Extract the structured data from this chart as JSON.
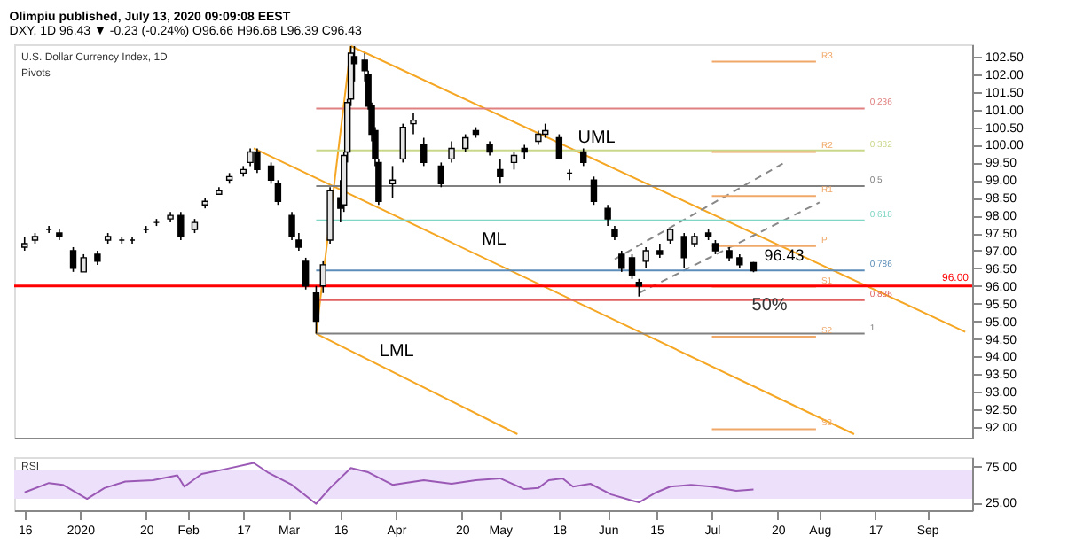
{
  "chart_data": [
    {
      "type": "candlestick",
      "title": "Olimpiu published, July 13, 2020 09:09:08 EEST",
      "subtitle": "DXY, 1D 96.43 ▼ -0.23 (-0.24%) O96.66 H96.68 L96.39 C96.43",
      "x": [
        "2019-12-16",
        "2019-12-19",
        "2019-12-23",
        "2019-12-26",
        "2019-12-30",
        "2020-01-02",
        "2020-01-06",
        "2020-01-09",
        "2020-01-13",
        "2020-01-16",
        "2020-01-20",
        "2020-01-23",
        "2020-01-27",
        "2020-01-30",
        "2020-02-03",
        "2020-02-06",
        "2020-02-10",
        "2020-02-13",
        "2020-02-17",
        "2020-02-19",
        "2020-02-21",
        "2020-02-25",
        "2020-02-27",
        "2020-03-02",
        "2020-03-04",
        "2020-03-06",
        "2020-03-09",
        "2020-03-11",
        "2020-03-13",
        "2020-03-16",
        "2020-03-17",
        "2020-03-18",
        "2020-03-19",
        "2020-03-20",
        "2020-03-23",
        "2020-03-24",
        "2020-03-25",
        "2020-03-26",
        "2020-03-27",
        "2020-03-31",
        "2020-04-03",
        "2020-04-06",
        "2020-04-09",
        "2020-04-14",
        "2020-04-17",
        "2020-04-21",
        "2020-04-24",
        "2020-04-28",
        "2020-05-01",
        "2020-05-05",
        "2020-05-08",
        "2020-05-12",
        "2020-05-14",
        "2020-05-18",
        "2020-05-21",
        "2020-05-25",
        "2020-05-28",
        "2020-06-01",
        "2020-06-03",
        "2020-06-05",
        "2020-06-08",
        "2020-06-10",
        "2020-06-12",
        "2020-06-16",
        "2020-06-19",
        "2020-06-23",
        "2020-06-26",
        "2020-06-30",
        "2020-07-02",
        "2020-07-06",
        "2020-07-09",
        "2020-07-13"
      ],
      "ohlc": [
        [
          97.1,
          97.4,
          97.0,
          97.2
        ],
        [
          97.3,
          97.5,
          97.2,
          97.4
        ],
        [
          97.6,
          97.7,
          97.5,
          97.6
        ],
        [
          97.5,
          97.6,
          97.3,
          97.4
        ],
        [
          97.0,
          97.1,
          96.4,
          96.5
        ],
        [
          96.4,
          96.9,
          96.4,
          96.8
        ],
        [
          96.9,
          97.0,
          96.6,
          96.7
        ],
        [
          97.3,
          97.5,
          97.2,
          97.4
        ],
        [
          97.3,
          97.4,
          97.2,
          97.3
        ],
        [
          97.3,
          97.4,
          97.2,
          97.3
        ],
        [
          97.6,
          97.7,
          97.5,
          97.6
        ],
        [
          97.8,
          97.9,
          97.7,
          97.8
        ],
        [
          97.9,
          98.1,
          97.8,
          98.0
        ],
        [
          98.0,
          98.1,
          97.3,
          97.4
        ],
        [
          97.6,
          97.9,
          97.5,
          97.8
        ],
        [
          98.3,
          98.5,
          98.2,
          98.4
        ],
        [
          98.6,
          98.8,
          98.6,
          98.7
        ],
        [
          99.0,
          99.2,
          98.9,
          99.1
        ],
        [
          99.2,
          99.4,
          99.1,
          99.3
        ],
        [
          99.5,
          99.9,
          99.4,
          99.8
        ],
        [
          99.8,
          99.9,
          99.2,
          99.3
        ],
        [
          99.4,
          99.5,
          98.9,
          99.0
        ],
        [
          98.9,
          99.0,
          98.3,
          98.4
        ],
        [
          98.0,
          98.1,
          97.3,
          97.4
        ],
        [
          97.3,
          97.5,
          97.0,
          97.1
        ],
        [
          96.7,
          96.8,
          95.9,
          96.0
        ],
        [
          95.8,
          96.0,
          94.65,
          95.0
        ],
        [
          96.0,
          96.7,
          95.8,
          96.6
        ],
        [
          97.3,
          98.8,
          97.2,
          98.7
        ],
        [
          98.5,
          99.0,
          97.8,
          98.2
        ],
        [
          98.3,
          99.8,
          98.1,
          99.7
        ],
        [
          99.8,
          101.3,
          99.5,
          101.2
        ],
        [
          101.3,
          102.8,
          101.1,
          102.6
        ],
        [
          102.5,
          102.8,
          101.8,
          102.3
        ],
        [
          102.4,
          102.6,
          101.8,
          102.1
        ],
        [
          102.0,
          102.1,
          101.0,
          101.1
        ],
        [
          101.1,
          101.2,
          100.1,
          100.3
        ],
        [
          100.4,
          100.5,
          99.4,
          99.6
        ],
        [
          99.5,
          99.6,
          98.3,
          98.4
        ],
        [
          98.9,
          99.4,
          98.5,
          99.0
        ],
        [
          99.6,
          100.6,
          99.5,
          100.5
        ],
        [
          100.6,
          100.9,
          100.3,
          100.7
        ],
        [
          100.0,
          100.2,
          99.4,
          99.5
        ],
        [
          99.4,
          99.5,
          98.8,
          98.9
        ],
        [
          99.6,
          100.1,
          99.5,
          99.9
        ],
        [
          99.9,
          100.3,
          99.8,
          100.2
        ],
        [
          100.4,
          100.5,
          100.2,
          100.3
        ],
        [
          100.0,
          100.1,
          99.7,
          99.8
        ],
        [
          99.3,
          99.6,
          98.9,
          99.1
        ],
        [
          99.5,
          99.8,
          99.3,
          99.7
        ],
        [
          99.9,
          100.0,
          99.6,
          99.8
        ],
        [
          100.1,
          100.4,
          100.0,
          100.3
        ],
        [
          100.3,
          100.6,
          100.2,
          100.4
        ],
        [
          100.2,
          100.3,
          99.6,
          99.6
        ],
        [
          99.2,
          99.3,
          99.0,
          99.2
        ],
        [
          99.8,
          99.9,
          99.4,
          99.5
        ],
        [
          99.0,
          99.1,
          98.3,
          98.4
        ],
        [
          98.2,
          98.3,
          97.7,
          97.9
        ],
        [
          97.6,
          97.7,
          97.3,
          97.4
        ],
        [
          96.9,
          97.0,
          96.4,
          96.5
        ],
        [
          96.8,
          96.9,
          96.2,
          96.3
        ],
        [
          96.1,
          96.2,
          95.7,
          96.0
        ],
        [
          96.7,
          97.1,
          96.5,
          97.0
        ],
        [
          97.0,
          97.2,
          96.8,
          96.9
        ],
        [
          97.3,
          97.6,
          97.2,
          97.6
        ],
        [
          97.4,
          97.5,
          96.5,
          96.8
        ],
        [
          97.2,
          97.5,
          97.1,
          97.4
        ],
        [
          97.5,
          97.6,
          97.3,
          97.4
        ],
        [
          97.2,
          97.3,
          96.9,
          97.0
        ],
        [
          97.0,
          97.1,
          96.7,
          96.8
        ],
        [
          96.8,
          96.9,
          96.5,
          96.6
        ],
        [
          96.66,
          96.68,
          96.39,
          96.43
        ]
      ],
      "xlim": [
        "2019-12-13",
        "2020-09-14"
      ],
      "ylim": [
        91.7,
        102.85
      ],
      "yticks": [
        {
          "value": 92,
          "label": "92.00"
        },
        {
          "value": 92.5,
          "label": "92.50"
        },
        {
          "value": 93,
          "label": "93.00"
        },
        {
          "value": 93.5,
          "label": "93.50"
        },
        {
          "value": 94,
          "label": "94.00"
        },
        {
          "value": 94.5,
          "label": "94.50"
        },
        {
          "value": 95,
          "label": "95.00"
        },
        {
          "value": 95.5,
          "label": "95.50"
        },
        {
          "value": 96,
          "label": "96.00"
        },
        {
          "value": 96.5,
          "label": "96.50"
        },
        {
          "value": 97,
          "label": "97.00"
        },
        {
          "value": 97.5,
          "label": "97.50"
        },
        {
          "value": 98,
          "label": "98.00"
        },
        {
          "value": 98.5,
          "label": "98.50"
        },
        {
          "value": 99,
          "label": "99.00"
        },
        {
          "value": 99.5,
          "label": "99.50"
        },
        {
          "value": 100,
          "label": "100.00"
        },
        {
          "value": 100.5,
          "label": "100.50"
        },
        {
          "value": 101,
          "label": "101.00"
        },
        {
          "value": 101.5,
          "label": "101.50"
        },
        {
          "value": 102,
          "label": "102.00"
        },
        {
          "value": 102.5,
          "label": "102.50"
        }
      ],
      "tick_labels": "y",
      "series": [
        {
          "name": "UML",
          "type": "line",
          "color": "#f5a623",
          "x": [
            "2020-03-19",
            "2020-09-12"
          ],
          "values": [
            102.8,
            94.7
          ]
        },
        {
          "name": "ML",
          "type": "line",
          "color": "#f5a623",
          "x": [
            "2020-02-20",
            "2020-08-11"
          ],
          "values": [
            99.9,
            91.8
          ]
        },
        {
          "name": "LML",
          "type": "line",
          "color": "#f5a623",
          "x": [
            "2020-03-09",
            "2020-05-06"
          ],
          "values": [
            94.65,
            91.8
          ]
        },
        {
          "type": "line",
          "color": "#f5a623",
          "x": [
            "2020-03-09",
            "2020-03-19"
          ],
          "values": [
            94.65,
            102.8
          ]
        },
        {
          "type": "line",
          "color": "#888888",
          "line_style": "dashed",
          "x": [
            "2020-06-03",
            "2020-07-22"
          ],
          "values": [
            96.76,
            99.5
          ]
        },
        {
          "type": "line",
          "color": "#888888",
          "line_style": "dashed",
          "x": [
            "2020-06-10",
            "2020-08-01"
          ],
          "values": [
            95.8,
            98.37
          ]
        },
        {
          "name": "0.236",
          "type": "line",
          "color": "#e08080",
          "x": [
            "2020-03-09",
            "2020-08-14"
          ],
          "values": [
            101.03,
            101.03
          ]
        },
        {
          "name": "0.382",
          "type": "line",
          "color": "#c8d88a",
          "x": [
            "2020-03-09",
            "2020-08-14"
          ],
          "values": [
            99.84,
            99.84
          ]
        },
        {
          "name": "0.5",
          "type": "line",
          "color": "#808080",
          "x": [
            "2020-03-09",
            "2020-08-14"
          ],
          "values": [
            98.83,
            98.83
          ]
        },
        {
          "name": "0.618",
          "type": "line",
          "color": "#7fd6c4",
          "x": [
            "2020-03-09",
            "2020-08-14"
          ],
          "values": [
            97.86,
            97.86
          ]
        },
        {
          "name": "0.786",
          "type": "line",
          "color": "#5b8db8",
          "x": [
            "2020-03-09",
            "2020-08-14"
          ],
          "values": [
            96.44,
            96.44
          ]
        },
        {
          "name": "0.886",
          "type": "line",
          "color": "#e06060",
          "x": [
            "2020-03-09",
            "2020-08-14"
          ],
          "values": [
            95.6,
            95.6
          ]
        },
        {
          "name": "1",
          "type": "line",
          "color": "#808080",
          "x": [
            "2020-03-09",
            "2020-08-14"
          ],
          "values": [
            94.65,
            94.65
          ]
        },
        {
          "name": "R3",
          "type": "line",
          "color": "#f0a868",
          "x": [
            "2020-07-01",
            "2020-07-31"
          ],
          "values": [
            102.36,
            102.36
          ]
        },
        {
          "name": "R2",
          "type": "line",
          "color": "#f0a868",
          "x": [
            "2020-07-01",
            "2020-07-31"
          ],
          "values": [
            99.8,
            99.8
          ]
        },
        {
          "name": "R1",
          "type": "line",
          "color": "#f0a868",
          "x": [
            "2020-07-01",
            "2020-07-31"
          ],
          "values": [
            98.55,
            98.55
          ]
        },
        {
          "name": "P",
          "type": "line",
          "color": "#f0a868",
          "x": [
            "2020-07-01",
            "2020-07-31"
          ],
          "values": [
            97.13,
            97.13
          ]
        },
        {
          "name": "S1",
          "type": "line",
          "color": "#f0a868",
          "x": [
            "2020-07-01",
            "2020-07-31"
          ],
          "values": [
            95.98,
            95.98
          ]
        },
        {
          "name": "S2",
          "type": "line",
          "color": "#f0a868",
          "x": [
            "2020-07-01",
            "2020-07-31"
          ],
          "values": [
            94.56,
            94.56
          ]
        },
        {
          "name": "S3",
          "type": "line",
          "color": "#f0a868",
          "x": [
            "2020-07-01",
            "2020-07-31"
          ],
          "values": [
            91.94,
            91.94
          ]
        }
      ],
      "ref_lines": [
        {
          "axis": "y",
          "value": 96,
          "label": "96.00",
          "color": "#ff0000"
        }
      ],
      "annotations": [
        "U.S. Dollar Currency Index, 1D",
        "Pivots",
        "50%",
        {
          "text": "96.43",
          "x": "2020-07-13",
          "y": 96.43
        }
      ]
    },
    {
      "type": "line",
      "title": "RSI",
      "x": [
        "2019-12-16",
        "2019-12-23",
        "2019-12-27",
        "2020-01-03",
        "2020-01-08",
        "2020-01-14",
        "2020-01-22",
        "2020-01-29",
        "2020-01-31",
        "2020-02-05",
        "2020-02-12",
        "2020-02-20",
        "2020-02-24",
        "2020-03-02",
        "2020-03-09",
        "2020-03-13",
        "2020-03-19",
        "2020-03-24",
        "2020-03-31",
        "2020-04-09",
        "2020-04-17",
        "2020-04-24",
        "2020-05-01",
        "2020-05-08",
        "2020-05-12",
        "2020-05-15",
        "2020-05-19",
        "2020-05-22",
        "2020-05-27",
        "2020-06-02",
        "2020-06-08",
        "2020-06-10",
        "2020-06-15",
        "2020-06-19",
        "2020-06-25",
        "2020-07-01",
        "2020-07-08",
        "2020-07-13"
      ],
      "series": [
        {
          "type": "line",
          "color": "#9b59b6",
          "values": [
            39,
            52,
            49.5,
            30,
            45,
            54,
            56,
            62.6,
            47,
            64.5,
            71.5,
            80,
            67,
            49.5,
            23,
            45,
            73,
            67,
            49.5,
            56,
            51,
            56,
            58.5,
            43.5,
            45,
            56,
            58.5,
            47,
            51,
            36,
            27.6,
            25,
            39,
            47,
            49.5,
            47,
            41,
            43
          ]
        }
      ],
      "xlim": [
        "2019-12-13",
        "2020-09-14"
      ],
      "ylim": [
        14,
        88
      ],
      "yticks": [
        {
          "value": 25,
          "label": "25.00"
        },
        {
          "value": 75,
          "label": "75.00"
        }
      ],
      "xticks": [
        {
          "value": "2019-12-16",
          "label": "16"
        },
        {
          "value": "2020-01-01",
          "label": "2020"
        },
        {
          "value": "2020-01-20",
          "label": "20"
        },
        {
          "value": "2020-02-01",
          "label": "Feb"
        },
        {
          "value": "2020-02-17",
          "label": "17"
        },
        {
          "value": "2020-03-01",
          "label": "Mar"
        },
        {
          "value": "2020-03-16",
          "label": "16"
        },
        {
          "value": "2020-04-01",
          "label": "Apr"
        },
        {
          "value": "2020-04-20",
          "label": "20"
        },
        {
          "value": "2020-05-01",
          "label": "May"
        },
        {
          "value": "2020-05-18",
          "label": "18"
        },
        {
          "value": "2020-06-01",
          "label": "Jun"
        },
        {
          "value": "2020-06-15",
          "label": "15"
        },
        {
          "value": "2020-07-01",
          "label": "Jul"
        },
        {
          "value": "2020-07-20",
          "label": "20"
        },
        {
          "value": "2020-08-01",
          "label": "Aug"
        },
        {
          "value": "2020-08-17",
          "label": "17"
        },
        {
          "value": "2020-09-01",
          "label": "Sep"
        }
      ],
      "bands": [
        {
          "axis": "y",
          "from": 30,
          "to": 70,
          "color": "#ede0fa"
        }
      ]
    }
  ]
}
